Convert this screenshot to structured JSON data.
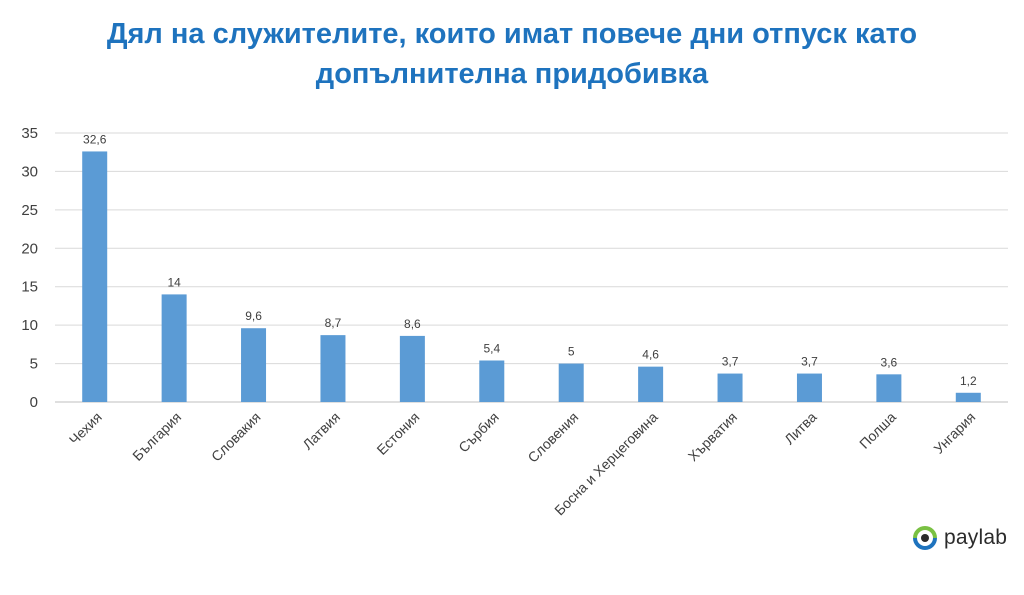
{
  "title_line1": "Дял на служителите, които имат повече дни отпуск като",
  "title_line2": "допълнителна придобивка",
  "logo_text": "paylab",
  "colors": {
    "bar": "#5b9bd5",
    "title": "#1e73be",
    "grid": "#d9d9d9",
    "text": "#404040"
  },
  "chart_data": {
    "type": "bar",
    "categories": [
      "Чехия",
      "България",
      "Словакия",
      "Латвия",
      "Естония",
      "Сърбия",
      "Словения",
      "Босна и Херцеговина",
      "Хърватия",
      "Литва",
      "Полша",
      "Унгария"
    ],
    "values": [
      32.6,
      14,
      9.6,
      8.7,
      8.6,
      5.4,
      5,
      4.6,
      3.7,
      3.7,
      3.6,
      1.2
    ],
    "value_labels": [
      "32,6",
      "14",
      "9,6",
      "8,7",
      "8,6",
      "5,4",
      "5",
      "4,6",
      "3,7",
      "3,7",
      "3,6",
      "1,2"
    ],
    "yticks": [
      0,
      5,
      10,
      15,
      20,
      25,
      30,
      35
    ],
    "ylim": [
      0,
      35
    ],
    "grid": true,
    "legend": "none"
  }
}
